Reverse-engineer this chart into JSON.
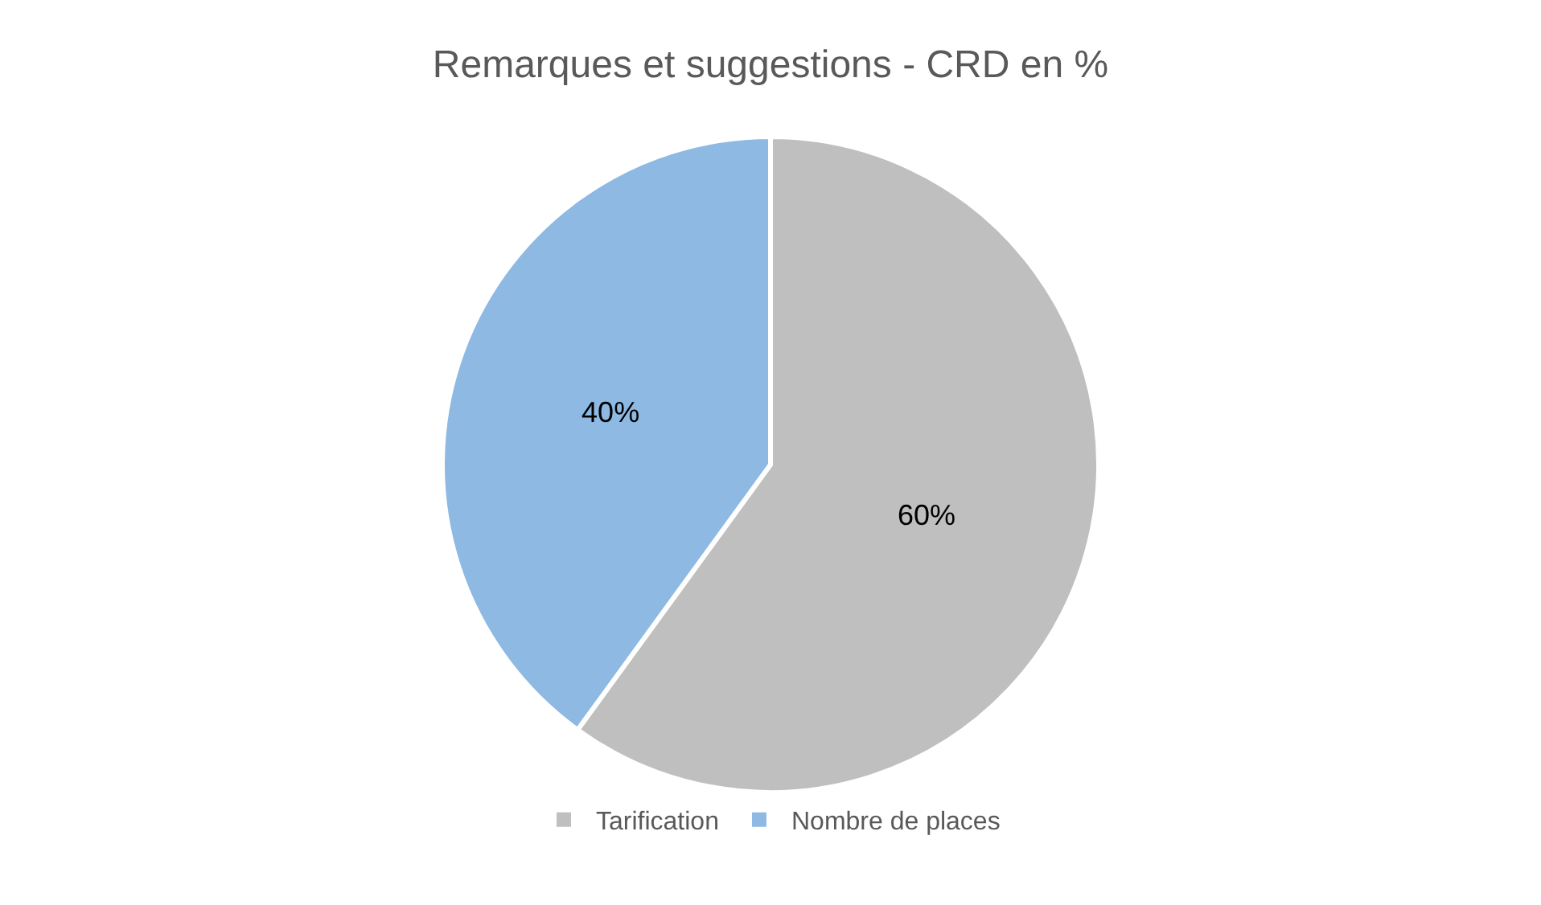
{
  "chart_data": {
    "type": "pie",
    "title": "Remarques et suggestions - CRD en %",
    "categories": [
      "Tarification",
      "Nombre de places"
    ],
    "values": [
      60,
      40
    ],
    "colors": [
      "#bfbfbf",
      "#8db9e2"
    ],
    "value_labels": [
      "60%",
      "40%"
    ],
    "legend": "bottom"
  }
}
